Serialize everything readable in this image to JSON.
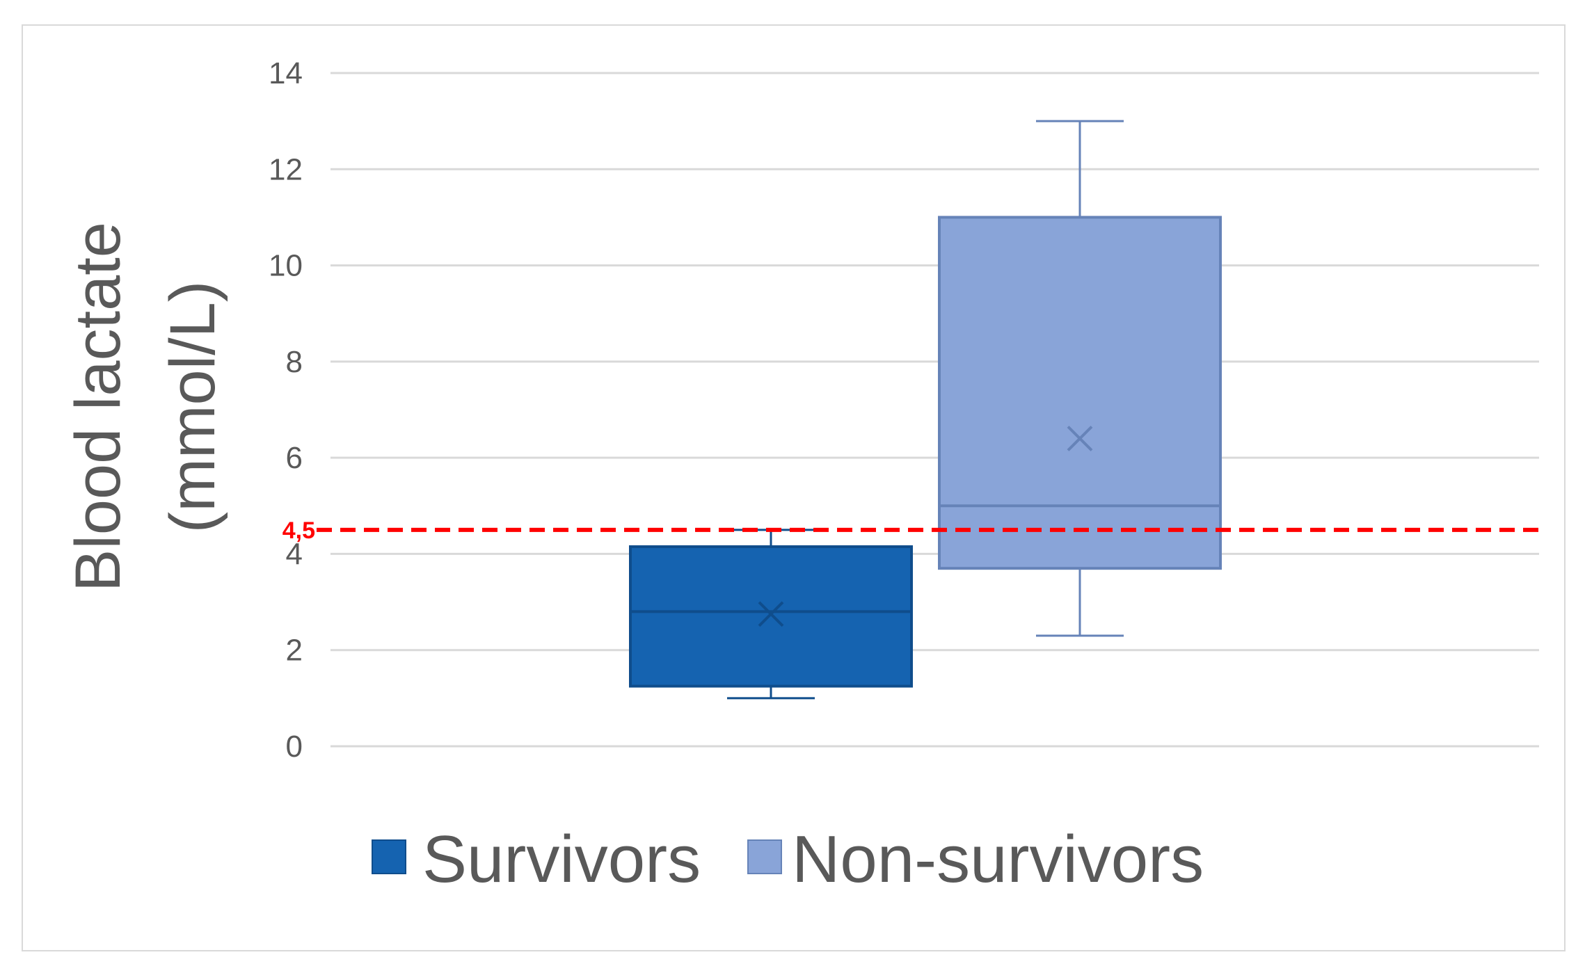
{
  "chart_data": {
    "type": "box",
    "title": "",
    "xlabel": "",
    "ylabel_lines": [
      "Blood lactate",
      "(mmol/L)"
    ],
    "ylim": [
      0,
      14
    ],
    "yticks": [
      0,
      2,
      4,
      6,
      8,
      10,
      12,
      14
    ],
    "grid": true,
    "legend_position": "bottom",
    "series": [
      {
        "name": "Survivors",
        "color": "#1563b0",
        "stroke": "#0f4d8c",
        "min": 1.0,
        "q1": 1.25,
        "median": 2.8,
        "q3": 4.15,
        "max": 4.5,
        "mean": 2.75
      },
      {
        "name": "Non-survivors",
        "color": "#89a4d8",
        "stroke": "#6683b8",
        "min": 2.3,
        "q1": 3.7,
        "median": 5.0,
        "q3": 11.0,
        "max": 13.0,
        "mean": 6.4
      }
    ],
    "reference_line": {
      "value": 4.5,
      "label": "4,5",
      "color": "#ff0000",
      "style": "dashed"
    }
  }
}
